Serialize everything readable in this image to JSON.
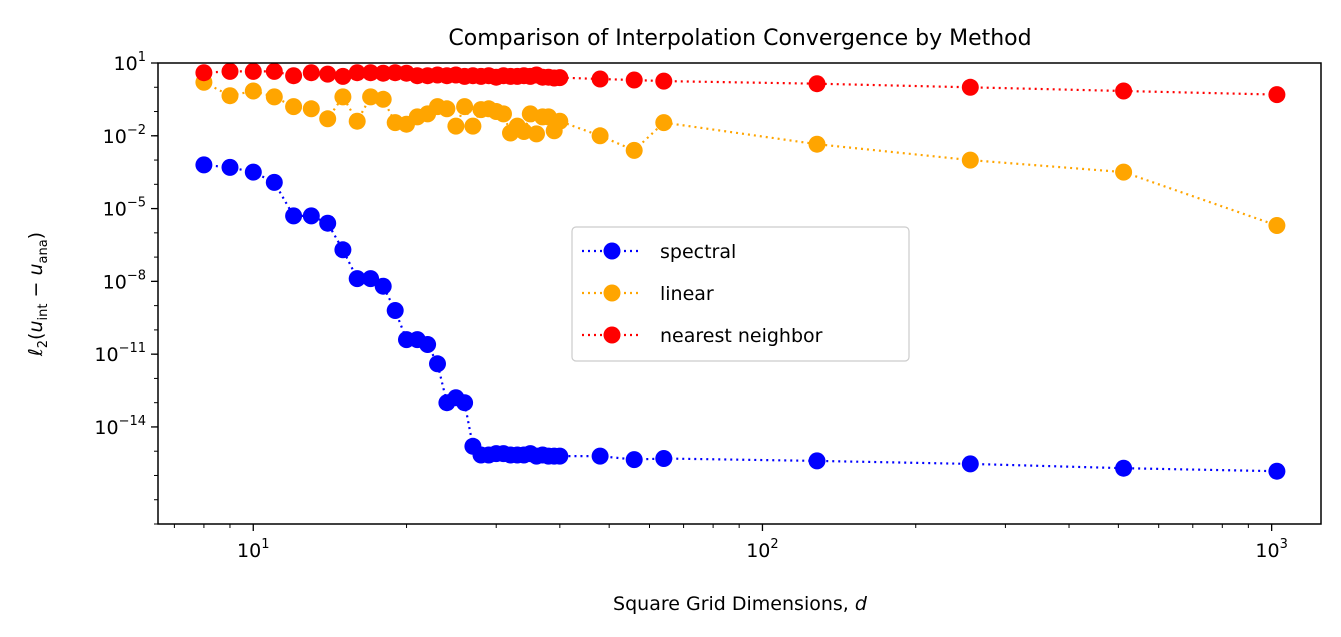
{
  "chart_data": {
    "type": "line",
    "title": "Comparison of Interpolation Convergence by Method",
    "xlabel": "Square Grid Dimensions, d",
    "ylabel": "ℓ2(u_int − u_ana)",
    "xscale": "log",
    "yscale": "log",
    "xlim": [
      6.5,
      1250
    ],
    "ylim": [
      1e-18,
      10
    ],
    "grid": false,
    "legend_position": "center",
    "linestyle": "dotted",
    "marker": "circle",
    "xticks": [
      {
        "value": 10,
        "base": "10",
        "exp": "1"
      },
      {
        "value": 100,
        "base": "10",
        "exp": "2"
      },
      {
        "value": 1000,
        "base": "10",
        "exp": "3"
      }
    ],
    "yticks": [
      {
        "value": 10,
        "base": "10",
        "exp": "1"
      },
      {
        "value": 0.01,
        "base": "10",
        "exp": "−2"
      },
      {
        "value": 1e-05,
        "base": "10",
        "exp": "−5"
      },
      {
        "value": 1e-08,
        "base": "10",
        "exp": "−8"
      },
      {
        "value": 1e-11,
        "base": "10",
        "exp": "−11"
      },
      {
        "value": 1e-14,
        "base": "10",
        "exp": "−14"
      }
    ],
    "series": [
      {
        "name": "spectral",
        "color": "#0000ff",
        "x": [
          8,
          9,
          10,
          11,
          12,
          13,
          14,
          15,
          16,
          17,
          18,
          19,
          20,
          21,
          22,
          23,
          24,
          25,
          26,
          27,
          28,
          29,
          30,
          31,
          32,
          33,
          34,
          35,
          36,
          37,
          38,
          39,
          40,
          48,
          56,
          64,
          128,
          256,
          512,
          1024
        ],
        "y": [
          0.00063,
          0.0005,
          0.00032,
          0.00012,
          5e-06,
          5e-06,
          2.5e-06,
          2e-07,
          1.3e-08,
          1.3e-08,
          6.3e-09,
          6.3e-10,
          4e-11,
          4e-11,
          2.5e-11,
          4e-12,
          1e-13,
          1.6e-13,
          1e-13,
          1.6e-15,
          7e-16,
          7e-16,
          8e-16,
          8e-16,
          7e-16,
          7e-16,
          7e-16,
          8e-16,
          6.3e-16,
          7e-16,
          6.3e-16,
          6.3e-16,
          6.3e-16,
          6.3e-16,
          4.5e-16,
          5e-16,
          4e-16,
          3e-16,
          2e-16,
          1.5e-16
        ]
      },
      {
        "name": "linear",
        "color": "#ffa500",
        "x": [
          8,
          9,
          10,
          11,
          12,
          13,
          14,
          15,
          16,
          17,
          18,
          19,
          20,
          21,
          22,
          23,
          24,
          25,
          26,
          27,
          28,
          29,
          30,
          31,
          32,
          33,
          34,
          35,
          36,
          37,
          38,
          39,
          40,
          48,
          56,
          64,
          128,
          256,
          512,
          1024
        ],
        "y": [
          1.6,
          0.45,
          0.7,
          0.4,
          0.16,
          0.13,
          0.05,
          0.4,
          0.04,
          0.4,
          0.32,
          0.035,
          0.03,
          0.06,
          0.08,
          0.16,
          0.13,
          0.025,
          0.16,
          0.025,
          0.12,
          0.13,
          0.1,
          0.08,
          0.013,
          0.025,
          0.015,
          0.08,
          0.012,
          0.06,
          0.06,
          0.016,
          0.04,
          0.01,
          0.0025,
          0.035,
          0.0045,
          0.001,
          0.00032,
          2e-06
        ]
      },
      {
        "name": "nearest neighbor",
        "color": "#ff0000",
        "x": [
          8,
          9,
          10,
          11,
          12,
          13,
          14,
          15,
          16,
          17,
          18,
          19,
          20,
          21,
          22,
          23,
          24,
          25,
          26,
          27,
          28,
          29,
          30,
          31,
          32,
          33,
          34,
          35,
          36,
          37,
          38,
          39,
          40,
          48,
          56,
          64,
          128,
          256,
          512,
          1024
        ],
        "y": [
          4,
          4.5,
          4.5,
          4.5,
          3,
          4,
          3.5,
          2.8,
          4,
          4,
          3.8,
          4,
          3.8,
          3,
          3,
          3.2,
          3,
          3.2,
          2.8,
          3,
          2.8,
          3,
          2.6,
          3,
          2.8,
          2.8,
          3,
          2.8,
          3.2,
          2.6,
          2.6,
          2.4,
          2.5,
          2.2,
          2,
          1.8,
          1.4,
          1,
          0.7,
          0.5
        ]
      }
    ]
  }
}
